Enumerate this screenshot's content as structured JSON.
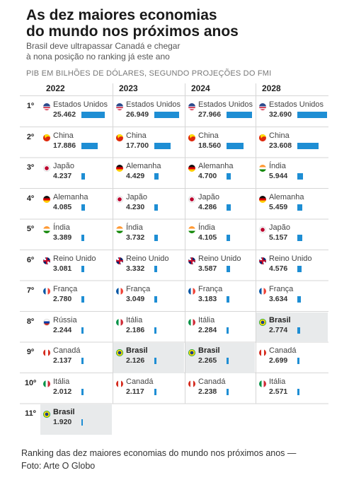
{
  "header": {
    "title_line1": "As dez maiores economias",
    "title_line2": "do mundo nos próximos anos",
    "subtitle_line1": "Brasil deve ultrapassar Canadá e chegar",
    "subtitle_line2": "à nona posição no ranking já este ano",
    "section_label": "PIB EM BILHÕES DE DÓLARES, SEGUNDO PROJEÇÕES DO FMI"
  },
  "caption": {
    "line1": "Ranking das dez maiores economias do mundo nos próximos anos —",
    "line2": "Foto: Arte O Globo"
  },
  "colors": {
    "bar": "#1e8ed4",
    "highlight": "#e8eaeb",
    "grid": "#d6d6d6"
  },
  "chart_data": {
    "type": "table",
    "highlight_country": "Brasil",
    "years": [
      "2022",
      "2023",
      "2024",
      "2028"
    ],
    "ranks": [
      "1º",
      "2º",
      "3º",
      "4º",
      "5º",
      "6º",
      "7º",
      "8º",
      "9º",
      "10º",
      "11º"
    ],
    "columns": [
      {
        "year": "2022",
        "entries": [
          {
            "country": "Estados Unidos",
            "value_label": "25.462",
            "value": 25462,
            "flag": "us-flag"
          },
          {
            "country": "China",
            "value_label": "17.886",
            "value": 17886,
            "flag": "china-flag"
          },
          {
            "country": "Japão",
            "value_label": "4.237",
            "value": 4237,
            "flag": "japan-flag"
          },
          {
            "country": "Alemanha",
            "value_label": "4.085",
            "value": 4085,
            "flag": "germany-flag"
          },
          {
            "country": "Índia",
            "value_label": "3.389",
            "value": 3389,
            "flag": "india-flag"
          },
          {
            "country": "Reino Unido",
            "value_label": "3.081",
            "value": 3081,
            "flag": "uk-flag"
          },
          {
            "country": "França",
            "value_label": "2.780",
            "value": 2780,
            "flag": "france-flag"
          },
          {
            "country": "Rússia",
            "value_label": "2.244",
            "value": 2244,
            "flag": "russia-flag"
          },
          {
            "country": "Canadá",
            "value_label": "2.137",
            "value": 2137,
            "flag": "canada-flag"
          },
          {
            "country": "Itália",
            "value_label": "2.012",
            "value": 2012,
            "flag": "italy-flag"
          },
          {
            "country": "Brasil",
            "value_label": "1.920",
            "value": 1920,
            "flag": "brazil-flag"
          }
        ]
      },
      {
        "year": "2023",
        "entries": [
          {
            "country": "Estados Unidos",
            "value_label": "26.949",
            "value": 26949,
            "flag": "us-flag"
          },
          {
            "country": "China",
            "value_label": "17.700",
            "value": 17700,
            "flag": "china-flag"
          },
          {
            "country": "Alemanha",
            "value_label": "4.429",
            "value": 4429,
            "flag": "germany-flag"
          },
          {
            "country": "Japão",
            "value_label": "4.230",
            "value": 4230,
            "flag": "japan-flag"
          },
          {
            "country": "Índia",
            "value_label": "3.732",
            "value": 3732,
            "flag": "india-flag"
          },
          {
            "country": "Reino Unido",
            "value_label": "3.332",
            "value": 3332,
            "flag": "uk-flag"
          },
          {
            "country": "França",
            "value_label": "3.049",
            "value": 3049,
            "flag": "france-flag"
          },
          {
            "country": "Itália",
            "value_label": "2.186",
            "value": 2186,
            "flag": "italy-flag"
          },
          {
            "country": "Brasil",
            "value_label": "2.126",
            "value": 2126,
            "flag": "brazil-flag"
          },
          {
            "country": "Canadá",
            "value_label": "2.117",
            "value": 2117,
            "flag": "canada-flag"
          }
        ]
      },
      {
        "year": "2024",
        "entries": [
          {
            "country": "Estados Unidos",
            "value_label": "27.966",
            "value": 27966,
            "flag": "us-flag"
          },
          {
            "country": "China",
            "value_label": "18.560",
            "value": 18560,
            "flag": "china-flag"
          },
          {
            "country": "Alemanha",
            "value_label": "4.700",
            "value": 4700,
            "flag": "germany-flag"
          },
          {
            "country": "Japão",
            "value_label": "4.286",
            "value": 4286,
            "flag": "japan-flag"
          },
          {
            "country": "Índia",
            "value_label": "4.105",
            "value": 4105,
            "flag": "india-flag"
          },
          {
            "country": "Reino Unido",
            "value_label": "3.587",
            "value": 3587,
            "flag": "uk-flag"
          },
          {
            "country": "França",
            "value_label": "3.183",
            "value": 3183,
            "flag": "france-flag"
          },
          {
            "country": "Itália",
            "value_label": "2.284",
            "value": 2284,
            "flag": "italy-flag"
          },
          {
            "country": "Brasil",
            "value_label": "2.265",
            "value": 2265,
            "flag": "brazil-flag"
          },
          {
            "country": "Canadá",
            "value_label": "2.238",
            "value": 2238,
            "flag": "canada-flag"
          }
        ]
      },
      {
        "year": "2028",
        "entries": [
          {
            "country": "Estados Unidos",
            "value_label": "32.690",
            "value": 32690,
            "flag": "us-flag"
          },
          {
            "country": "China",
            "value_label": "23.608",
            "value": 23608,
            "flag": "china-flag"
          },
          {
            "country": "Índia",
            "value_label": "5.944",
            "value": 5944,
            "flag": "india-flag"
          },
          {
            "country": "Alemanha",
            "value_label": "5.459",
            "value": 5459,
            "flag": "germany-flag"
          },
          {
            "country": "Japão",
            "value_label": "5.157",
            "value": 5157,
            "flag": "japan-flag"
          },
          {
            "country": "Reino Unido",
            "value_label": "4.576",
            "value": 4576,
            "flag": "uk-flag"
          },
          {
            "country": "França",
            "value_label": "3.634",
            "value": 3634,
            "flag": "france-flag"
          },
          {
            "country": "Brasil",
            "value_label": "2.774",
            "value": 2774,
            "flag": "brazil-flag"
          },
          {
            "country": "Canadá",
            "value_label": "2.699",
            "value": 2699,
            "flag": "canada-flag"
          },
          {
            "country": "Itália",
            "value_label": "2.571",
            "value": 2571,
            "flag": "italy-flag"
          }
        ]
      }
    ]
  }
}
